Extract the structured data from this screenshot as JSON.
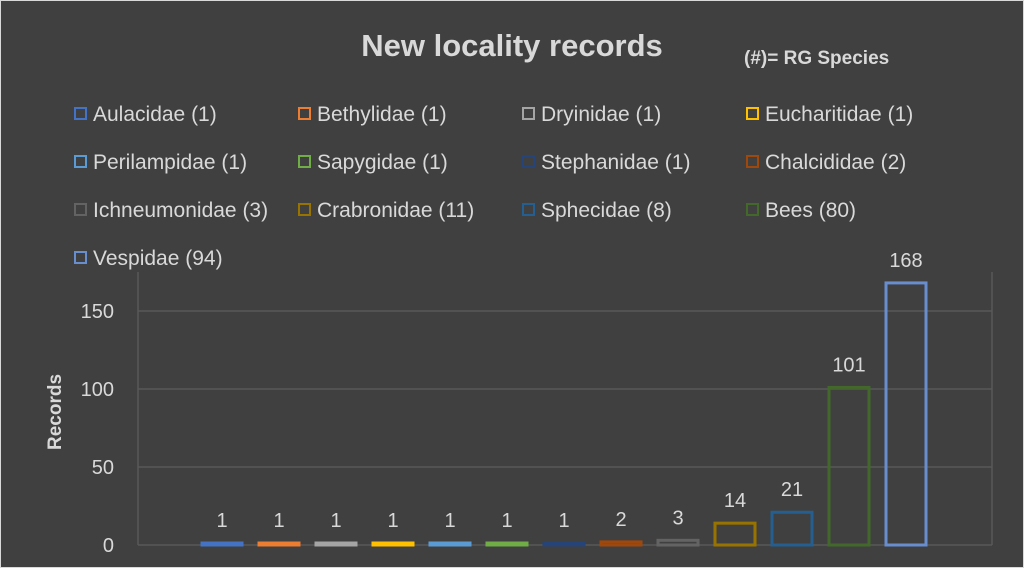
{
  "chart_data": {
    "type": "bar",
    "title": "New locality records",
    "subtitle": "(#)= RG Species",
    "ylabel": "Records",
    "xlabel": "",
    "ylim": [
      0,
      175
    ],
    "yticks": [
      0,
      50,
      100,
      150
    ],
    "grid": true,
    "legend_position": "top",
    "categories": [
      "Aulacidae (1)",
      "Bethylidae (1)",
      "Dryinidae (1)",
      "Eucharitidae (1)",
      "Perilampidae (1)",
      "Sapygidae (1)",
      "Stephanidae (1)",
      "Chalcididae (2)",
      "Ichneumonidae (3)",
      "Crabronidae (11)",
      "Sphecidae (8)",
      "Bees (80)",
      "Vespidae (94)"
    ],
    "values": [
      1,
      1,
      1,
      1,
      1,
      1,
      1,
      2,
      3,
      14,
      21,
      101,
      168
    ],
    "colors": [
      "#4472c4",
      "#ed7d31",
      "#a5a5a5",
      "#ffc000",
      "#5b9bd5",
      "#70ad47",
      "#264478",
      "#9e480e",
      "#636363",
      "#997300",
      "#255e91",
      "#43682b",
      "#698ed0"
    ]
  }
}
